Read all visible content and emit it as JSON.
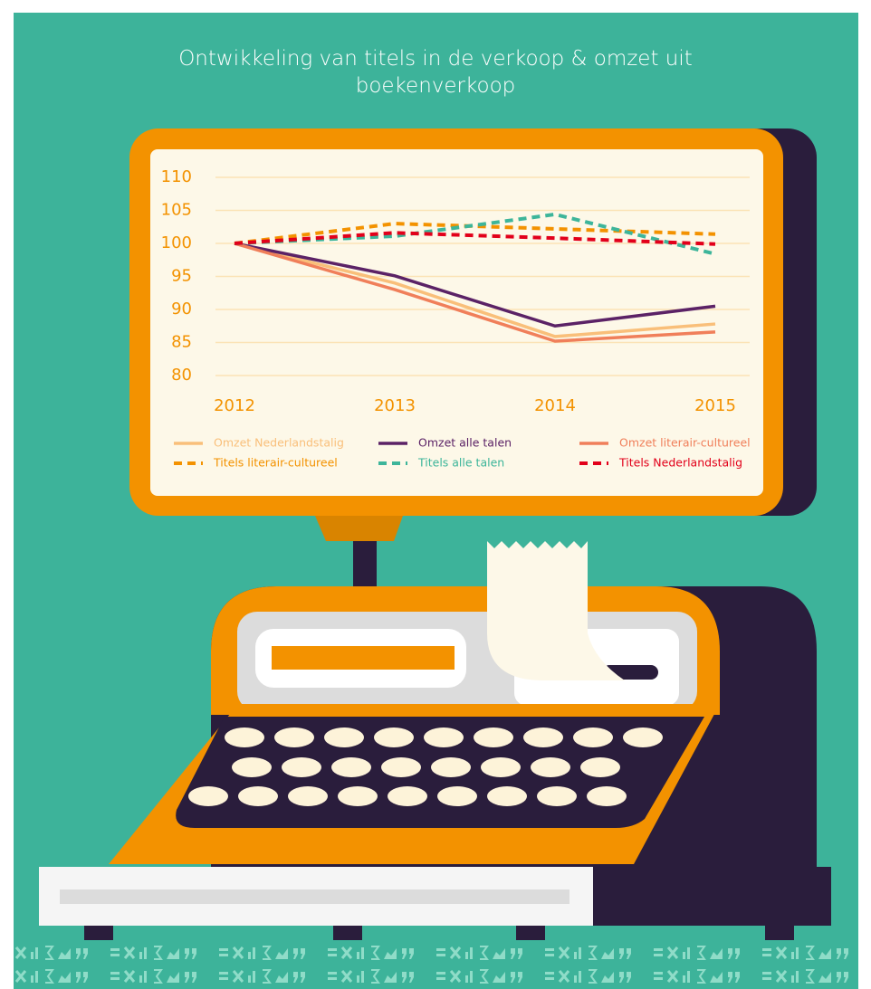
{
  "chart_data": {
    "type": "line",
    "title": "Ontwikkeling van titels in de verkoop & omzet uit boekenverkoop",
    "categories": [
      "2012",
      "2013",
      "2014",
      "2015"
    ],
    "series": [
      {
        "name": "Omzet Nederlandstalig",
        "color": "#f9bf7a",
        "dashed": false,
        "values": [
          100,
          94,
          85.9,
          87.8
        ]
      },
      {
        "name": "Omzet alle talen",
        "color": "#5b2266",
        "dashed": false,
        "values": [
          100,
          95.1,
          87.5,
          90.5
        ]
      },
      {
        "name": "Omzet literair-cultureel",
        "color": "#f07f5a",
        "dashed": false,
        "values": [
          100,
          93,
          85.2,
          86.6
        ]
      },
      {
        "name": "Titels literair-cultureel",
        "color": "#f39200",
        "dashed": true,
        "values": [
          100,
          103,
          102.2,
          101.4
        ]
      },
      {
        "name": "Titels alle talen",
        "color": "#3db59a",
        "dashed": true,
        "values": [
          100,
          101.1,
          104.4,
          98.4
        ]
      },
      {
        "name": "Titels Nederlandstalig",
        "color": "#e2001a",
        "dashed": true,
        "values": [
          100,
          101.6,
          100.8,
          99.9
        ]
      }
    ],
    "ylim": [
      80,
      110
    ],
    "yticks": [
      80,
      85,
      90,
      95,
      100,
      105,
      110
    ],
    "grid": true
  }
}
